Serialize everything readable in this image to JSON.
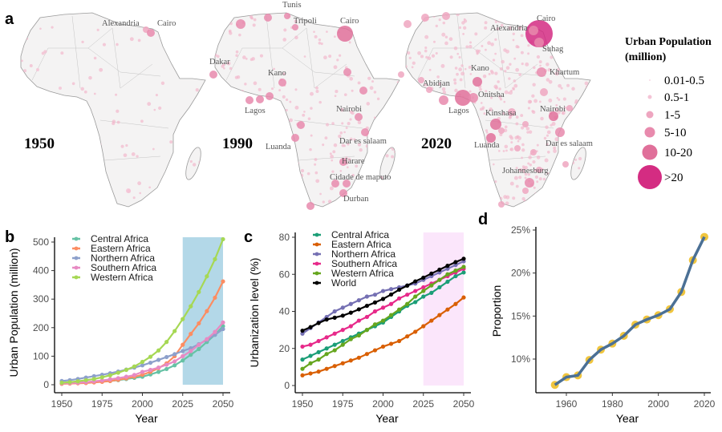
{
  "panel_labels": {
    "a": "a",
    "b": "b",
    "c": "c",
    "d": "d"
  },
  "maps": {
    "years": [
      "1950",
      "1990",
      "2020"
    ],
    "land_color": "#f4f3f3",
    "border_color": "#9a9a9a",
    "dot_color": "#f2b8cc",
    "city_labels": {
      "m1950": [
        "Alexandria",
        "Cairo"
      ],
      "m1990": [
        "Tunis",
        "Tripoli",
        "Cairo",
        "Dakar",
        "Kano",
        "Lagos",
        "Nairobi",
        "Luanda",
        "Dar es salaam",
        "Harare",
        "Cidade de maputo",
        "Durban"
      ],
      "m2020": [
        "Cairo",
        "Alexandria",
        "Suhag",
        "Kano",
        "Khartum",
        "Abidjan",
        "Onitsha",
        "Lagos",
        "Nairobi",
        "Kinshasa",
        "Luanda",
        "Dar es salaam",
        "Johannesburg"
      ]
    },
    "legend": {
      "title_line1": "Urban Population",
      "title_line2": "(million)",
      "classes": [
        {
          "label": "0.01-0.5",
          "color": "#f7dbe6"
        },
        {
          "label": "0.5-1",
          "color": "#f4c4d6"
        },
        {
          "label": "1-5",
          "color": "#eea6c0"
        },
        {
          "label": "5-10",
          "color": "#e88aad"
        },
        {
          "label": "10-20",
          "color": "#e0709a"
        },
        {
          "label": ">20",
          "color": "#d42c82"
        }
      ]
    }
  },
  "chart_data": [
    {
      "id": "b",
      "type": "line",
      "xlabel": "Year",
      "ylabel": "Urban Population (million)",
      "xlim": [
        1950,
        2050
      ],
      "ylim": [
        0,
        500
      ],
      "xticks": [
        1950,
        1975,
        2000,
        2025,
        2050
      ],
      "yticks": [
        0,
        100,
        200,
        300,
        400,
        500
      ],
      "shaded_range": [
        2025,
        2050
      ],
      "shade_color": "#b3d8e8",
      "legend_position": "top-left",
      "x": [
        1950,
        1955,
        1960,
        1965,
        1970,
        1975,
        1980,
        1985,
        1990,
        1995,
        2000,
        2005,
        2010,
        2015,
        2020,
        2025,
        2030,
        2035,
        2040,
        2045,
        2050
      ],
      "series": [
        {
          "name": "Central Africa",
          "color": "#66c2a5",
          "values": [
            4,
            5,
            6,
            7,
            9,
            11,
            13,
            16,
            20,
            24,
            28,
            36,
            45,
            55,
            68,
            85,
            105,
            125,
            150,
            175,
            205
          ]
        },
        {
          "name": "Eastern Africa",
          "color": "#fc8d62",
          "values": [
            3,
            4,
            5,
            6,
            8,
            10,
            13,
            17,
            22,
            28,
            35,
            45,
            58,
            75,
            100,
            140,
            178,
            215,
            258,
            305,
            362
          ]
        },
        {
          "name": "Northern Africa",
          "color": "#8da0cb",
          "values": [
            13,
            16,
            20,
            25,
            30,
            35,
            40,
            46,
            53,
            60,
            68,
            77,
            87,
            97,
            107,
            118,
            128,
            142,
            157,
            175,
            195
          ]
        },
        {
          "name": "Southern Africa",
          "color": "#e78ac3",
          "values": [
            5,
            6,
            7,
            9,
            12,
            15,
            19,
            23,
            28,
            34,
            45,
            52,
            60,
            70,
            82,
            100,
            118,
            140,
            160,
            185,
            218
          ]
        },
        {
          "name": "Western Africa",
          "color": "#a6d854",
          "values": [
            7,
            9,
            12,
            16,
            20,
            26,
            33,
            42,
            52,
            64,
            80,
            98,
            120,
            150,
            188,
            230,
            275,
            325,
            380,
            440,
            510
          ]
        }
      ]
    },
    {
      "id": "c",
      "type": "line",
      "xlabel": "Year",
      "ylabel": "Urbanization level (%)",
      "xlim": [
        1950,
        2050
      ],
      "ylim": [
        0,
        80
      ],
      "xticks": [
        1950,
        1975,
        2000,
        2025,
        2050
      ],
      "yticks": [
        0,
        20,
        40,
        60,
        80
      ],
      "shaded_range": [
        2025,
        2050
      ],
      "shade_color": "#fbe6fb",
      "legend_position": "top-left",
      "x": [
        1950,
        1955,
        1960,
        1965,
        1970,
        1975,
        1980,
        1985,
        1990,
        1995,
        2000,
        2005,
        2010,
        2015,
        2020,
        2025,
        2030,
        2035,
        2040,
        2045,
        2050
      ],
      "series": [
        {
          "name": "Central Africa",
          "color": "#1b9e77",
          "values": [
            14,
            16,
            18,
            20,
            22,
            24,
            26,
            28,
            30,
            32,
            34,
            37,
            40,
            43,
            45,
            48,
            50,
            53,
            56,
            59,
            61
          ]
        },
        {
          "name": "Eastern Africa",
          "color": "#d95f02",
          "values": [
            5.5,
            6.5,
            7.5,
            9,
            10.5,
            12,
            13.5,
            15,
            17,
            19,
            21,
            22.5,
            24,
            26.5,
            29,
            32,
            35,
            38,
            41,
            44,
            47.5
          ]
        },
        {
          "name": "Northern Africa",
          "color": "#7570b3",
          "values": [
            28,
            31,
            34,
            37,
            40,
            42,
            44,
            46,
            48,
            49,
            51,
            52,
            53,
            54,
            55,
            57,
            59,
            61,
            63,
            65,
            67
          ]
        },
        {
          "name": "Southern Africa",
          "color": "#e7298a",
          "values": [
            21,
            22,
            24,
            26,
            28,
            30,
            32,
            35,
            37,
            40,
            42,
            44,
            47,
            49,
            51,
            53,
            55,
            57,
            59,
            61,
            63
          ]
        },
        {
          "name": "Western Africa",
          "color": "#66a61e",
          "values": [
            9,
            12,
            14,
            17,
            19,
            22,
            25,
            27,
            30,
            33,
            35,
            38,
            41,
            44,
            48,
            51,
            54,
            57,
            60,
            62,
            64
          ]
        },
        {
          "name": "World",
          "color": "#000000",
          "values": [
            29.6,
            31.5,
            33.7,
            35.6,
            36.6,
            37.7,
            39.3,
            41.1,
            43.0,
            44.8,
            46.7,
            49.1,
            51.7,
            53.9,
            56.2,
            58.2,
            60.4,
            62.5,
            64.6,
            66.6,
            68.4
          ]
        }
      ]
    },
    {
      "id": "d",
      "type": "line",
      "xlabel": "Year",
      "ylabel": "Proportion",
      "xlim": [
        1950,
        2020
      ],
      "ylim": [
        6,
        25
      ],
      "xticks": [
        1960,
        1980,
        2000,
        2020
      ],
      "yticks": [
        10,
        15,
        20,
        25
      ],
      "ytick_labels": [
        "10%",
        "15%",
        "20%",
        "25%"
      ],
      "x": [
        1955,
        1960,
        1965,
        1970,
        1975,
        1980,
        1985,
        1990,
        1995,
        2000,
        2005,
        2010,
        2015,
        2020
      ],
      "series": [
        {
          "color": "#4b7095",
          "point_color": "#f0c53e",
          "values": [
            7.0,
            7.9,
            8.1,
            9.9,
            11.1,
            11.8,
            12.7,
            14.0,
            14.6,
            15.1,
            15.8,
            17.8,
            21.5,
            24.2
          ]
        }
      ]
    }
  ]
}
